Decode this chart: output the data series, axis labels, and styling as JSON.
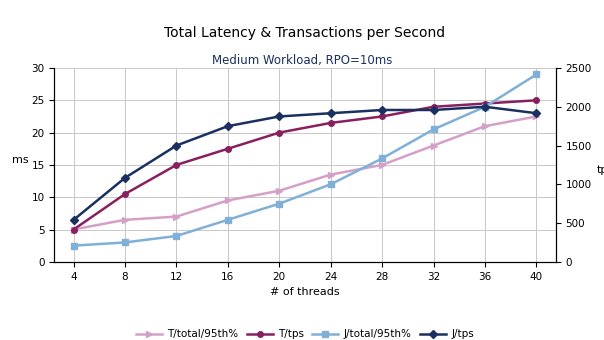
{
  "title": "Total Latency & Transactions per Second",
  "subtitle": "Medium Workload, RPO=10ms",
  "xlabel": "# of threads",
  "ylabel_left": "ms",
  "ylabel_right": "tps",
  "threads": [
    4,
    8,
    12,
    16,
    20,
    24,
    28,
    32,
    36,
    40
  ],
  "T_total_95th": [
    5.0,
    6.5,
    7.0,
    9.5,
    11.0,
    13.5,
    15.0,
    18.0,
    21.0,
    22.5
  ],
  "T_tps": [
    5.0,
    10.5,
    15.0,
    17.5,
    20.0,
    21.5,
    22.5,
    24.0,
    24.5,
    25.0
  ],
  "J_total_95th": [
    2.5,
    3.0,
    4.0,
    6.5,
    9.0,
    12.0,
    16.0,
    20.5,
    24.0,
    29.0
  ],
  "J_tps": [
    6.5,
    13.0,
    18.0,
    21.0,
    22.5,
    23.0,
    23.5,
    23.5,
    24.0,
    23.0
  ],
  "ylim_left": [
    0,
    30
  ],
  "ylim_right": [
    0,
    2500
  ],
  "yticks_left": [
    0,
    5,
    10,
    15,
    20,
    25,
    30
  ],
  "yticks_right": [
    0,
    500,
    1000,
    1500,
    2000,
    2500
  ],
  "color_T_total": "#D4A0C8",
  "color_T_tps": "#882060",
  "color_J_total": "#80B0D8",
  "color_J_tps": "#1A3060",
  "bg_color": "#FFFFFF",
  "grid_color": "#C8C8C8",
  "legend_labels": [
    "T/total/95th%",
    "T/tps",
    "J/total/95th%",
    "J/tps"
  ]
}
